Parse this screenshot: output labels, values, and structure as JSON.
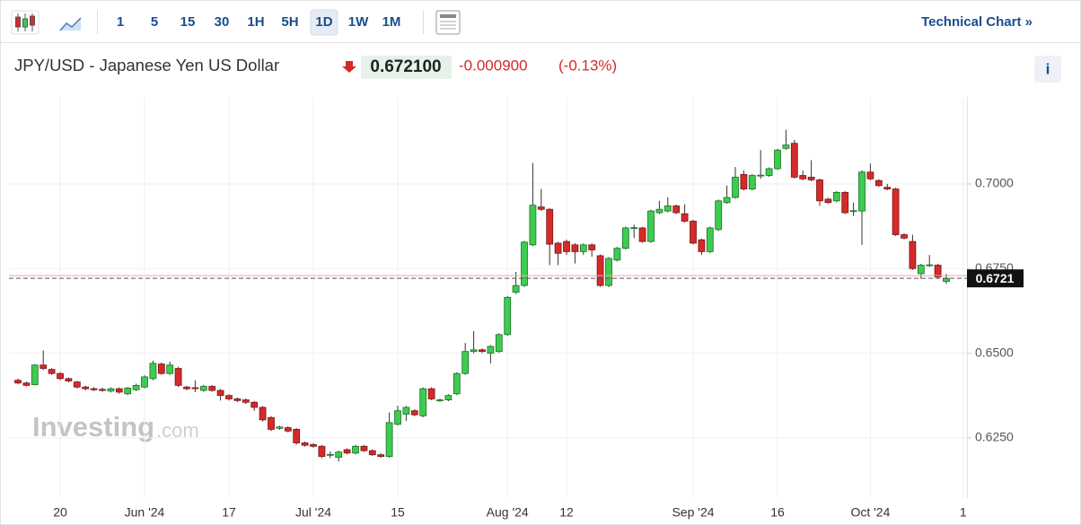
{
  "toolbar": {
    "intervals": [
      "1",
      "5",
      "15",
      "30",
      "1H",
      "5H",
      "1D",
      "1W",
      "1M"
    ],
    "active": "1D",
    "link": "Technical Chart »"
  },
  "chart_data": {
    "type": "candlestick",
    "title": "JPY/USD - Japanese Yen US Dollar",
    "price": "0.672100",
    "change": "-0.000900",
    "change_percent": "(-0.13%)",
    "info": "i",
    "watermark": {
      "brand": "Investing",
      "suffix": ".com"
    },
    "up_color": "#3dcc50",
    "down_color": "#d42a2a",
    "grid": true,
    "current_price": 0.6721,
    "previous_close": 0.6729,
    "ylim": [
      0.6072,
      0.7257
    ],
    "yticks": [
      {
        "value": 0.625,
        "label": "0.6250"
      },
      {
        "value": 0.65,
        "label": "0.6500"
      },
      {
        "value": 0.675,
        "label": "0.6750"
      },
      {
        "value": 0.7,
        "label": "0.7000"
      }
    ],
    "categories": [
      null,
      null,
      null,
      null,
      null,
      "20",
      null,
      null,
      null,
      null,
      null,
      null,
      null,
      null,
      null,
      "Jun '24",
      null,
      null,
      null,
      null,
      null,
      null,
      null,
      null,
      null,
      "17",
      null,
      null,
      null,
      null,
      null,
      null,
      null,
      null,
      null,
      "Jul '24",
      null,
      null,
      null,
      null,
      null,
      null,
      null,
      null,
      null,
      "15",
      null,
      null,
      null,
      null,
      null,
      null,
      null,
      null,
      null,
      null,
      null,
      null,
      "Aug '24",
      null,
      null,
      null,
      null,
      null,
      null,
      "12",
      null,
      null,
      null,
      null,
      null,
      null,
      null,
      null,
      null,
      null,
      null,
      null,
      null,
      null,
      "Sep '24",
      null,
      null,
      null,
      null,
      null,
      null,
      null,
      null,
      null,
      "16",
      null,
      null,
      null,
      null,
      null,
      null,
      null,
      null,
      null,
      null,
      "Oct '24",
      null,
      null,
      null,
      null,
      null,
      null,
      null,
      null,
      null,
      null,
      "1"
    ],
    "open": [
      0.642,
      0.6412,
      0.6407,
      0.6465,
      0.6452,
      0.644,
      0.6425,
      0.6415,
      0.64,
      0.6395,
      0.6393,
      0.6388,
      0.6395,
      0.638,
      0.6392,
      0.64,
      0.6425,
      0.6468,
      0.644,
      0.6455,
      0.64,
      0.6398,
      0.639,
      0.6402,
      0.639,
      0.6375,
      0.6365,
      0.6362,
      0.6355,
      0.634,
      0.631,
      0.6278,
      0.628,
      0.6275,
      0.6235,
      0.623,
      0.6225,
      0.62,
      0.6192,
      0.6215,
      0.6205,
      0.6225,
      0.6212,
      0.62,
      0.6195,
      0.629,
      0.632,
      0.633,
      0.6315,
      0.6395,
      0.636,
      0.6362,
      0.638,
      0.644,
      0.6505,
      0.651,
      0.65,
      0.6505,
      0.6555,
      0.668,
      0.67,
      0.682,
      0.6932,
      0.6925,
      0.6825,
      0.683,
      0.682,
      0.68,
      0.682,
      0.6788,
      0.67,
      0.6775,
      0.681,
      0.687,
      0.687,
      0.683,
      0.6915,
      0.692,
      0.6935,
      0.6912,
      0.689,
      0.6835,
      0.68,
      0.6865,
      0.6945,
      0.696,
      0.7028,
      0.6985,
      0.7025,
      0.7025,
      0.7045,
      0.7105,
      0.712,
      0.7025,
      0.702,
      0.7012,
      0.6955,
      0.695,
      0.6975,
      0.692,
      0.692,
      0.7035,
      0.701,
      0.699,
      0.6985,
      0.685,
      0.683,
      0.6735,
      0.676,
      0.676,
      0.6712,
      null,
      null
    ],
    "high": [
      0.6425,
      0.6416,
      0.6468,
      0.6508,
      0.6456,
      0.6444,
      0.6428,
      0.6418,
      0.6404,
      0.64,
      0.6398,
      0.6399,
      0.6399,
      0.64,
      0.641,
      0.6435,
      0.6478,
      0.6472,
      0.6475,
      0.646,
      0.6404,
      0.642,
      0.6406,
      0.6406,
      0.6394,
      0.6379,
      0.6369,
      0.6366,
      0.6359,
      0.6344,
      0.6314,
      0.6286,
      0.6284,
      0.6279,
      0.6239,
      0.6234,
      0.6229,
      0.621,
      0.6212,
      0.6219,
      0.6229,
      0.6229,
      0.6216,
      0.6204,
      0.6325,
      0.6345,
      0.6344,
      0.6334,
      0.6399,
      0.6399,
      0.6366,
      0.6379,
      0.6444,
      0.653,
      0.6565,
      0.6514,
      0.6524,
      0.6559,
      0.6669,
      0.674,
      0.6832,
      0.7062,
      0.6985,
      0.6929,
      0.6829,
      0.6835,
      0.6825,
      0.6824,
      0.6824,
      0.6792,
      0.6784,
      0.6814,
      0.6874,
      0.688,
      0.6874,
      0.6924,
      0.695,
      0.696,
      0.6939,
      0.694,
      0.6894,
      0.6839,
      0.6874,
      0.6954,
      0.6995,
      0.705,
      0.704,
      0.7029,
      0.71,
      0.7049,
      0.7104,
      0.716,
      0.713,
      0.704,
      0.707,
      0.7016,
      0.6959,
      0.6979,
      0.6979,
      0.6945,
      0.704,
      0.706,
      0.7014,
      0.7,
      0.6989,
      0.6854,
      0.685,
      0.6764,
      0.679,
      0.6764,
      0.6734,
      null,
      null
    ],
    "low": [
      0.6408,
      0.6402,
      0.6405,
      0.645,
      0.6436,
      0.642,
      0.6414,
      0.6396,
      0.639,
      0.6388,
      0.6386,
      0.6384,
      0.638,
      0.6376,
      0.6388,
      0.6396,
      0.642,
      0.6436,
      0.6436,
      0.64,
      0.639,
      0.6385,
      0.6386,
      0.6386,
      0.636,
      0.636,
      0.6356,
      0.635,
      0.633,
      0.6298,
      0.627,
      0.6274,
      0.6266,
      0.623,
      0.6224,
      0.622,
      0.619,
      0.619,
      0.618,
      0.6201,
      0.6201,
      0.6208,
      0.6196,
      0.6191,
      0.6191,
      0.6286,
      0.63,
      0.6314,
      0.6311,
      0.6361,
      0.6356,
      0.6358,
      0.6376,
      0.6436,
      0.65,
      0.65,
      0.647,
      0.6501,
      0.6551,
      0.6675,
      0.6696,
      0.6816,
      0.692,
      0.676,
      0.676,
      0.679,
      0.6765,
      0.679,
      0.6785,
      0.6696,
      0.6695,
      0.6771,
      0.6806,
      0.684,
      0.6826,
      0.6826,
      0.6911,
      0.6916,
      0.6911,
      0.6886,
      0.6821,
      0.679,
      0.6796,
      0.6861,
      0.6941,
      0.6956,
      0.6981,
      0.6981,
      0.7015,
      0.7021,
      0.7041,
      0.7101,
      0.7016,
      0.7011,
      0.7008,
      0.6935,
      0.6941,
      0.6946,
      0.6911,
      0.6905,
      0.682,
      0.7011,
      0.6991,
      0.6981,
      0.6846,
      0.6836,
      0.6746,
      0.672,
      0.6755,
      0.6721,
      0.6705,
      null,
      null
    ],
    "close": [
      0.6412,
      0.6405,
      0.6465,
      0.6455,
      0.644,
      0.6425,
      0.6418,
      0.64,
      0.6395,
      0.6392,
      0.639,
      0.6395,
      0.6385,
      0.6397,
      0.6405,
      0.643,
      0.647,
      0.644,
      0.6465,
      0.6405,
      0.6395,
      0.6397,
      0.6402,
      0.639,
      0.6375,
      0.6365,
      0.636,
      0.6355,
      0.634,
      0.6303,
      0.6275,
      0.6282,
      0.627,
      0.6235,
      0.6228,
      0.6225,
      0.6195,
      0.6201,
      0.6208,
      0.6205,
      0.6225,
      0.6212,
      0.62,
      0.6195,
      0.6295,
      0.633,
      0.634,
      0.6318,
      0.6395,
      0.6365,
      0.6362,
      0.6375,
      0.644,
      0.6505,
      0.651,
      0.6505,
      0.652,
      0.6555,
      0.6665,
      0.67,
      0.6828,
      0.6937,
      0.6925,
      0.6822,
      0.6795,
      0.68,
      0.68,
      0.682,
      0.6805,
      0.67,
      0.678,
      0.681,
      0.687,
      0.6871,
      0.683,
      0.692,
      0.6925,
      0.6935,
      0.6915,
      0.689,
      0.6825,
      0.68,
      0.687,
      0.695,
      0.696,
      0.702,
      0.6985,
      0.7025,
      0.7026,
      0.7045,
      0.71,
      0.7115,
      0.702,
      0.7015,
      0.7012,
      0.695,
      0.6945,
      0.6975,
      0.6915,
      0.6921,
      0.7035,
      0.7015,
      0.6995,
      0.6985,
      0.685,
      0.684,
      0.675,
      0.676,
      0.6761,
      0.6725,
      0.6721,
      null,
      null
    ]
  }
}
